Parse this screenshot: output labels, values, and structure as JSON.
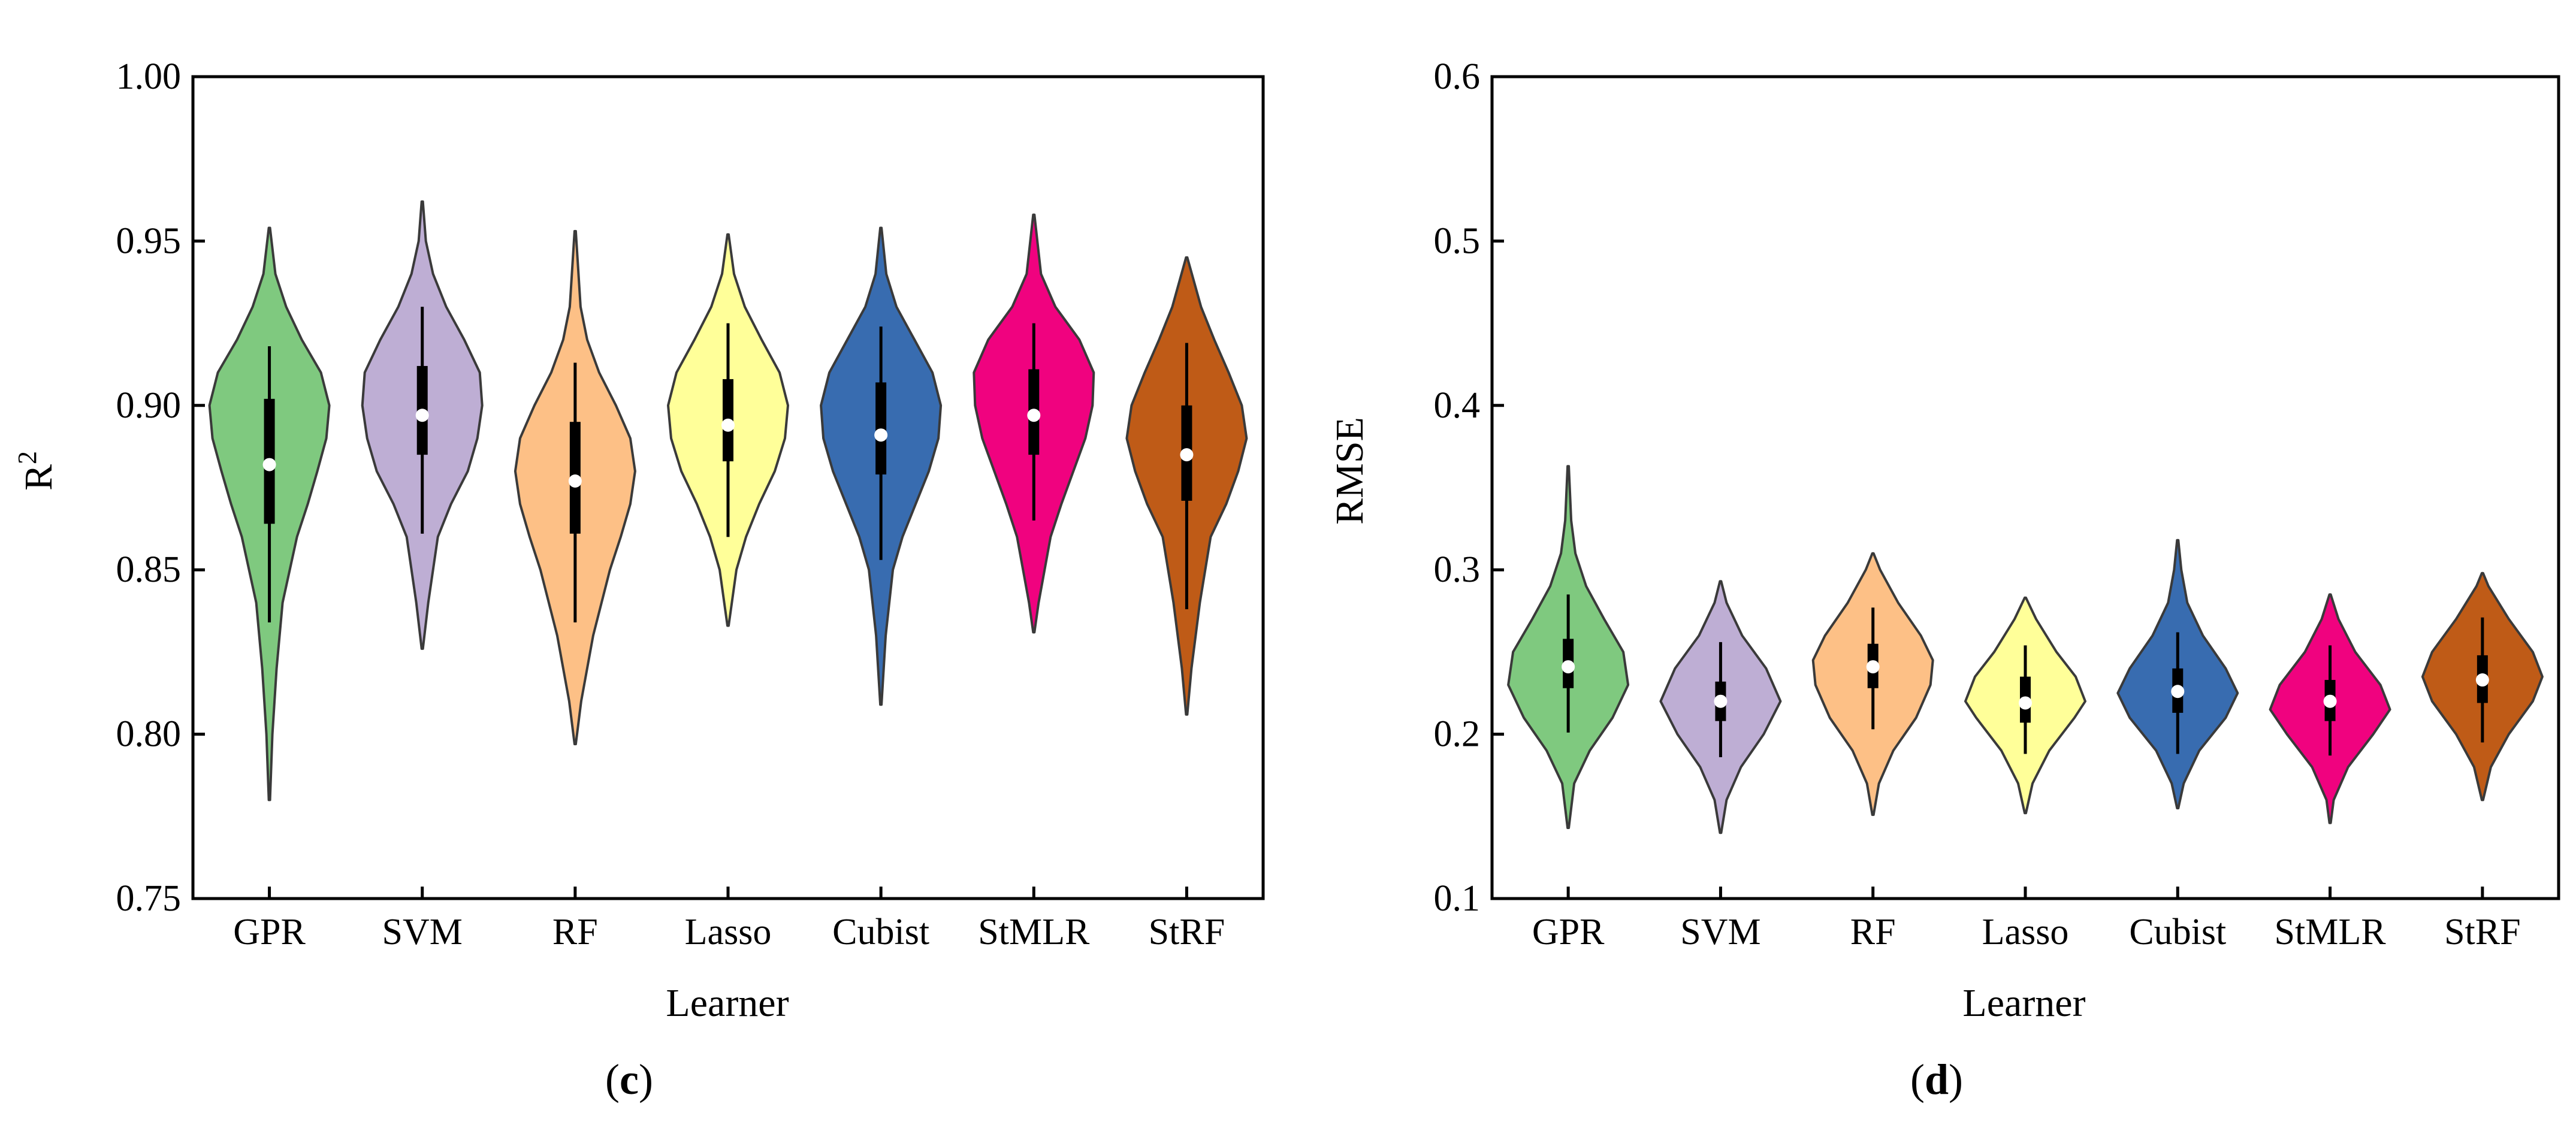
{
  "chart_data": [
    {
      "type": "violin",
      "panel": "(c)",
      "panel_letter": "c",
      "xlabel": "Learner",
      "ylabel": "R",
      "ylabel_sup": "2",
      "ylim": [
        0.75,
        1.0
      ],
      "yticks": [
        "0.75",
        "0.80",
        "0.85",
        "0.90",
        "0.95",
        "1.00"
      ],
      "categories": [
        "GPR",
        "SVM",
        "RF",
        "Lasso",
        "Cubist",
        "StMLR",
        "StRF"
      ],
      "series": [
        {
          "name": "GPR",
          "color": "#7fc97f",
          "min": 0.78,
          "max": 0.954,
          "q1": 0.864,
          "median": 0.882,
          "q3": 0.902,
          "whisker_low": 0.834,
          "whisker_high": 0.918,
          "profile": [
            [
              0.78,
              0.01
            ],
            [
              0.8,
              0.05
            ],
            [
              0.82,
              0.12
            ],
            [
              0.84,
              0.22
            ],
            [
              0.86,
              0.46
            ],
            [
              0.87,
              0.64
            ],
            [
              0.88,
              0.8
            ],
            [
              0.89,
              0.95
            ],
            [
              0.9,
              1.0
            ],
            [
              0.91,
              0.86
            ],
            [
              0.92,
              0.54
            ],
            [
              0.93,
              0.28
            ],
            [
              0.94,
              0.1
            ],
            [
              0.954,
              0.01
            ]
          ]
        },
        {
          "name": "SVM",
          "color": "#beaed4",
          "min": 0.826,
          "max": 0.962,
          "q1": 0.885,
          "median": 0.897,
          "q3": 0.912,
          "whisker_low": 0.861,
          "whisker_high": 0.93,
          "profile": [
            [
              0.826,
              0.01
            ],
            [
              0.84,
              0.1
            ],
            [
              0.86,
              0.26
            ],
            [
              0.87,
              0.48
            ],
            [
              0.88,
              0.76
            ],
            [
              0.89,
              0.92
            ],
            [
              0.9,
              1.0
            ],
            [
              0.91,
              0.96
            ],
            [
              0.92,
              0.7
            ],
            [
              0.93,
              0.4
            ],
            [
              0.94,
              0.18
            ],
            [
              0.95,
              0.06
            ],
            [
              0.962,
              0.01
            ]
          ]
        },
        {
          "name": "RF",
          "color": "#fdc086",
          "min": 0.797,
          "max": 0.953,
          "q1": 0.861,
          "median": 0.877,
          "q3": 0.895,
          "whisker_low": 0.834,
          "whisker_high": 0.913,
          "profile": [
            [
              0.797,
              0.01
            ],
            [
              0.81,
              0.1
            ],
            [
              0.83,
              0.3
            ],
            [
              0.85,
              0.58
            ],
            [
              0.86,
              0.76
            ],
            [
              0.87,
              0.92
            ],
            [
              0.88,
              1.0
            ],
            [
              0.89,
              0.92
            ],
            [
              0.9,
              0.68
            ],
            [
              0.91,
              0.4
            ],
            [
              0.92,
              0.2
            ],
            [
              0.93,
              0.09
            ],
            [
              0.953,
              0.01
            ]
          ]
        },
        {
          "name": "Lasso",
          "color": "#ffff99",
          "min": 0.833,
          "max": 0.952,
          "q1": 0.883,
          "median": 0.894,
          "q3": 0.908,
          "whisker_low": 0.86,
          "whisker_high": 0.925,
          "profile": [
            [
              0.833,
              0.01
            ],
            [
              0.85,
              0.14
            ],
            [
              0.86,
              0.3
            ],
            [
              0.87,
              0.52
            ],
            [
              0.88,
              0.78
            ],
            [
              0.89,
              0.95
            ],
            [
              0.9,
              1.0
            ],
            [
              0.91,
              0.86
            ],
            [
              0.92,
              0.56
            ],
            [
              0.93,
              0.28
            ],
            [
              0.94,
              0.1
            ],
            [
              0.952,
              0.01
            ]
          ]
        },
        {
          "name": "Cubist",
          "color": "#386cb0",
          "min": 0.809,
          "max": 0.954,
          "q1": 0.879,
          "median": 0.891,
          "q3": 0.907,
          "whisker_low": 0.853,
          "whisker_high": 0.924,
          "profile": [
            [
              0.809,
              0.01
            ],
            [
              0.83,
              0.08
            ],
            [
              0.85,
              0.2
            ],
            [
              0.86,
              0.36
            ],
            [
              0.87,
              0.58
            ],
            [
              0.88,
              0.8
            ],
            [
              0.89,
              0.96
            ],
            [
              0.9,
              1.0
            ],
            [
              0.91,
              0.86
            ],
            [
              0.92,
              0.56
            ],
            [
              0.93,
              0.26
            ],
            [
              0.94,
              0.09
            ],
            [
              0.954,
              0.01
            ]
          ]
        },
        {
          "name": "StMLR",
          "color": "#f0027f",
          "min": 0.831,
          "max": 0.958,
          "q1": 0.885,
          "median": 0.897,
          "q3": 0.911,
          "whisker_low": 0.865,
          "whisker_high": 0.925,
          "profile": [
            [
              0.831,
              0.01
            ],
            [
              0.84,
              0.08
            ],
            [
              0.86,
              0.28
            ],
            [
              0.87,
              0.46
            ],
            [
              0.88,
              0.66
            ],
            [
              0.89,
              0.86
            ],
            [
              0.9,
              0.98
            ],
            [
              0.91,
              1.0
            ],
            [
              0.92,
              0.76
            ],
            [
              0.93,
              0.36
            ],
            [
              0.94,
              0.12
            ],
            [
              0.958,
              0.01
            ]
          ]
        },
        {
          "name": "StRF",
          "color": "#bf5b17",
          "min": 0.806,
          "max": 0.945,
          "q1": 0.871,
          "median": 0.885,
          "q3": 0.9,
          "whisker_low": 0.838,
          "whisker_high": 0.919,
          "profile": [
            [
              0.806,
              0.01
            ],
            [
              0.82,
              0.08
            ],
            [
              0.84,
              0.22
            ],
            [
              0.86,
              0.4
            ],
            [
              0.87,
              0.66
            ],
            [
              0.88,
              0.86
            ],
            [
              0.89,
              1.0
            ],
            [
              0.9,
              0.92
            ],
            [
              0.91,
              0.7
            ],
            [
              0.92,
              0.46
            ],
            [
              0.93,
              0.24
            ],
            [
              0.945,
              0.01
            ]
          ]
        }
      ]
    },
    {
      "type": "violin",
      "panel": "(d)",
      "panel_letter": "d",
      "xlabel": "Learner",
      "ylabel": "RMSE",
      "ylabel_sup": "",
      "ylim": [
        0.1,
        0.6
      ],
      "yticks": [
        "0.1",
        "0.2",
        "0.3",
        "0.4",
        "0.5",
        "0.6"
      ],
      "categories": [
        "GPR",
        "SVM",
        "RF",
        "Lasso",
        "Cubist",
        "StMLR",
        "StRF"
      ],
      "series": [
        {
          "name": "GPR",
          "color": "#7fc97f",
          "min": 0.143,
          "max": 0.363,
          "q1": 0.228,
          "median": 0.241,
          "q3": 0.258,
          "whisker_low": 0.201,
          "whisker_high": 0.285,
          "profile": [
            [
              0.143,
              0.01
            ],
            [
              0.17,
              0.1
            ],
            [
              0.19,
              0.36
            ],
            [
              0.21,
              0.74
            ],
            [
              0.23,
              1.0
            ],
            [
              0.25,
              0.92
            ],
            [
              0.27,
              0.6
            ],
            [
              0.29,
              0.3
            ],
            [
              0.31,
              0.12
            ],
            [
              0.33,
              0.05
            ],
            [
              0.363,
              0.01
            ]
          ]
        },
        {
          "name": "SVM",
          "color": "#beaed4",
          "min": 0.14,
          "max": 0.293,
          "q1": 0.208,
          "median": 0.22,
          "q3": 0.232,
          "whisker_low": 0.186,
          "whisker_high": 0.256,
          "profile": [
            [
              0.14,
              0.01
            ],
            [
              0.16,
              0.1
            ],
            [
              0.18,
              0.34
            ],
            [
              0.2,
              0.72
            ],
            [
              0.22,
              1.0
            ],
            [
              0.24,
              0.76
            ],
            [
              0.26,
              0.36
            ],
            [
              0.28,
              0.1
            ],
            [
              0.293,
              0.01
            ]
          ]
        },
        {
          "name": "RF",
          "color": "#fdc086",
          "min": 0.151,
          "max": 0.31,
          "q1": 0.228,
          "median": 0.241,
          "q3": 0.255,
          "whisker_low": 0.203,
          "whisker_high": 0.277,
          "profile": [
            [
              0.151,
              0.01
            ],
            [
              0.17,
              0.1
            ],
            [
              0.19,
              0.34
            ],
            [
              0.21,
              0.72
            ],
            [
              0.23,
              0.96
            ],
            [
              0.245,
              1.0
            ],
            [
              0.26,
              0.8
            ],
            [
              0.28,
              0.42
            ],
            [
              0.3,
              0.12
            ],
            [
              0.31,
              0.01
            ]
          ]
        },
        {
          "name": "Lasso",
          "color": "#ffff99",
          "min": 0.152,
          "max": 0.283,
          "q1": 0.207,
          "median": 0.219,
          "q3": 0.235,
          "whisker_low": 0.188,
          "whisker_high": 0.254,
          "profile": [
            [
              0.152,
              0.01
            ],
            [
              0.17,
              0.12
            ],
            [
              0.19,
              0.4
            ],
            [
              0.21,
              0.82
            ],
            [
              0.22,
              1.0
            ],
            [
              0.235,
              0.84
            ],
            [
              0.25,
              0.52
            ],
            [
              0.27,
              0.18
            ],
            [
              0.283,
              0.01
            ]
          ]
        },
        {
          "name": "Cubist",
          "color": "#386cb0",
          "min": 0.155,
          "max": 0.318,
          "q1": 0.213,
          "median": 0.226,
          "q3": 0.24,
          "whisker_low": 0.188,
          "whisker_high": 0.262,
          "profile": [
            [
              0.155,
              0.01
            ],
            [
              0.17,
              0.1
            ],
            [
              0.19,
              0.36
            ],
            [
              0.21,
              0.8
            ],
            [
              0.225,
              1.0
            ],
            [
              0.24,
              0.8
            ],
            [
              0.26,
              0.42
            ],
            [
              0.28,
              0.16
            ],
            [
              0.3,
              0.06
            ],
            [
              0.318,
              0.01
            ]
          ]
        },
        {
          "name": "StMLR",
          "color": "#f0027f",
          "min": 0.146,
          "max": 0.285,
          "q1": 0.208,
          "median": 0.22,
          "q3": 0.233,
          "whisker_low": 0.187,
          "whisker_high": 0.254,
          "profile": [
            [
              0.146,
              0.01
            ],
            [
              0.16,
              0.06
            ],
            [
              0.18,
              0.3
            ],
            [
              0.2,
              0.72
            ],
            [
              0.215,
              1.0
            ],
            [
              0.23,
              0.84
            ],
            [
              0.25,
              0.42
            ],
            [
              0.27,
              0.14
            ],
            [
              0.285,
              0.01
            ]
          ]
        },
        {
          "name": "StRF",
          "color": "#bf5b17",
          "min": 0.16,
          "max": 0.298,
          "q1": 0.219,
          "median": 0.233,
          "q3": 0.248,
          "whisker_low": 0.195,
          "whisker_high": 0.271,
          "profile": [
            [
              0.16,
              0.01
            ],
            [
              0.18,
              0.14
            ],
            [
              0.2,
              0.44
            ],
            [
              0.22,
              0.84
            ],
            [
              0.235,
              1.0
            ],
            [
              0.25,
              0.84
            ],
            [
              0.27,
              0.44
            ],
            [
              0.29,
              0.1
            ],
            [
              0.298,
              0.01
            ]
          ]
        }
      ]
    }
  ]
}
